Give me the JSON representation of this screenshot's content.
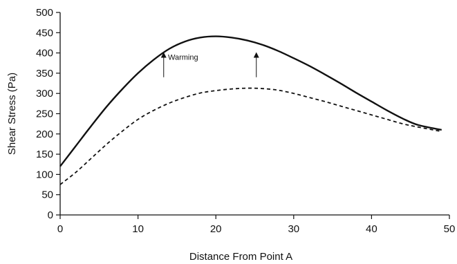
{
  "chart_data": {
    "type": "line",
    "xlabel": "Distance From Point A",
    "ylabel": "Shear Stress (Pa)",
    "xlim": [
      0,
      50
    ],
    "ylim": [
      0,
      500
    ],
    "xticks": [
      0,
      10,
      20,
      30,
      40,
      50
    ],
    "yticks": [
      0,
      50,
      100,
      150,
      200,
      250,
      300,
      350,
      400,
      450,
      500
    ],
    "grid": false,
    "legend": "none",
    "series": [
      {
        "style": "solid",
        "color": "#111111",
        "x": [
          0,
          2,
          4,
          6,
          8,
          10,
          12,
          14,
          16,
          18,
          20,
          22,
          24,
          26,
          28,
          30,
          32,
          34,
          36,
          38,
          40,
          42,
          44,
          46,
          49
        ],
        "y": [
          120,
          170,
          220,
          268,
          311,
          350,
          383,
          410,
          428,
          438,
          441,
          438,
          431,
          420,
          405,
          387,
          368,
          347,
          325,
          302,
          280,
          258,
          238,
          222,
          210
        ]
      },
      {
        "style": "dashed",
        "color": "#111111",
        "x": [
          0,
          2,
          4,
          6,
          8,
          10,
          12,
          14,
          16,
          18,
          20,
          22,
          24,
          26,
          28,
          30,
          32,
          34,
          36,
          38,
          40,
          42,
          44,
          46,
          49
        ],
        "y": [
          75,
          105,
          140,
          175,
          207,
          236,
          258,
          276,
          290,
          301,
          307,
          311,
          313,
          312,
          308,
          300,
          290,
          280,
          269,
          258,
          247,
          236,
          225,
          217,
          206
        ]
      }
    ],
    "annotations": [
      {
        "text": "Warming",
        "x": 13.5,
        "y": 390
      }
    ],
    "arrows": [
      {
        "x": 13.3,
        "y_from": 340,
        "y_to": 395
      },
      {
        "x": 25.2,
        "y_from": 340,
        "y_to": 395
      }
    ]
  }
}
